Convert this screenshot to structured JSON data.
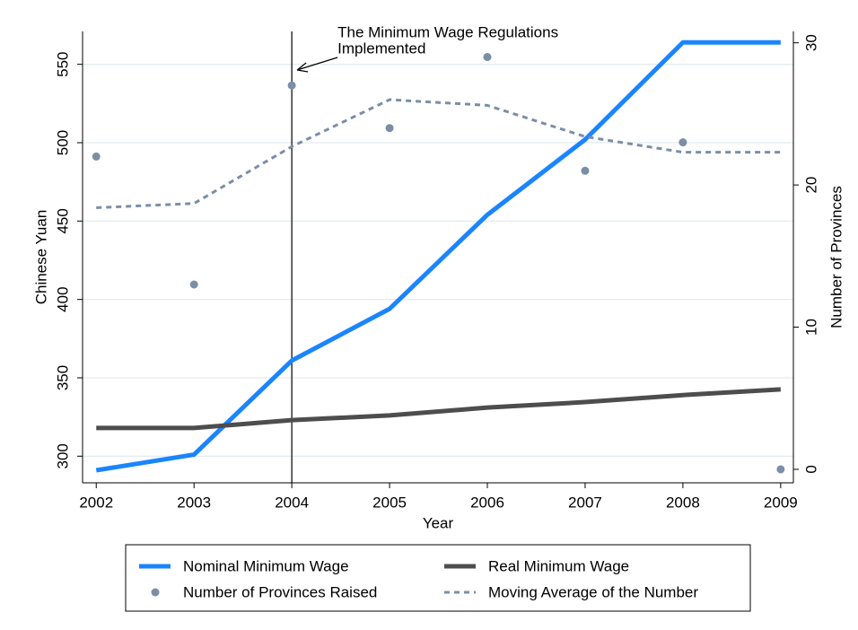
{
  "chart_data": {
    "type": "line",
    "x": [
      2002,
      2003,
      2004,
      2005,
      2006,
      2007,
      2008,
      2009
    ],
    "xlim": [
      2001.86,
      2009.13
    ],
    "xticks": [
      2002,
      2003,
      2004,
      2005,
      2006,
      2007,
      2008,
      2009
    ],
    "ylim": [
      283,
      571
    ],
    "yticks": [
      300,
      350,
      400,
      450,
      500,
      550
    ],
    "y2lim": [
      -0.95,
      30.8
    ],
    "y2ticks": [
      0,
      10,
      20,
      30
    ],
    "grid": true,
    "xlabel": "Year",
    "ylabel": "Chinese Yuan",
    "y2label": "Number of Provinces",
    "annotation": {
      "lines": [
        "The Minimum Wage Regulations",
        "Implemented"
      ],
      "x": 2004
    },
    "series": [
      {
        "name": "Nominal Minimum Wage",
        "color": "#1a85ff",
        "style": "solid",
        "values": [
          291,
          301,
          361,
          394,
          454,
          502,
          564,
          564
        ]
      },
      {
        "name": "Real Minimum Wage",
        "color": "#4d4d4d",
        "style": "solid",
        "values": [
          318,
          318,
          323,
          326,
          331,
          334.5,
          339,
          342.6
        ]
      },
      {
        "name": "Number of Provinces Raised",
        "color": "#7b8ea6",
        "style": "dots",
        "axis": "y2",
        "values": [
          22,
          13,
          27,
          24,
          29,
          21,
          23,
          0
        ]
      },
      {
        "name": "Moving Average of the Number",
        "color": "#7b8ea6",
        "style": "dashed",
        "axis": "y2",
        "values": [
          18.4,
          18.7,
          22.7,
          26.0,
          25.6,
          23.4,
          22.3,
          22.3
        ]
      }
    ]
  }
}
